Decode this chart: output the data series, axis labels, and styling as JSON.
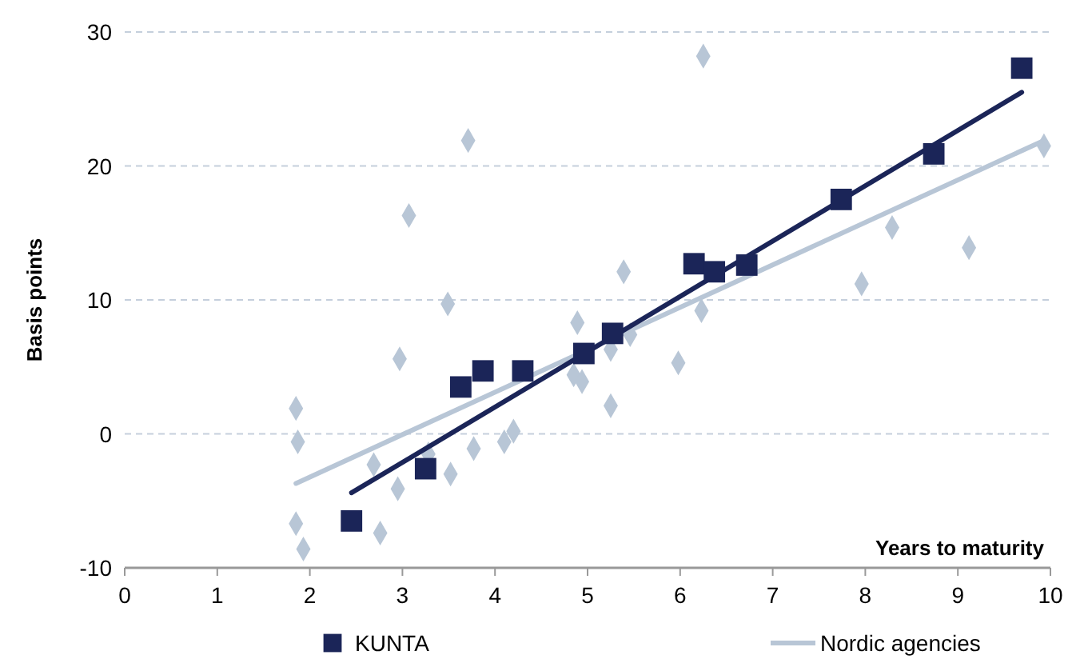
{
  "chart_data": {
    "type": "scatter",
    "xlabel": "Years to maturity",
    "ylabel": "Basis points",
    "xlim": [
      0,
      10
    ],
    "xticks": [
      0,
      1,
      2,
      3,
      4,
      5,
      6,
      7,
      8,
      9,
      10
    ],
    "ylim": [
      -10,
      30
    ],
    "yticks": [
      -10,
      0,
      10,
      20,
      30
    ],
    "grid": "y",
    "legend": "bottom",
    "series": [
      {
        "marker": "diamond",
        "color": "#b8c6d6",
        "x": [
          1.85,
          1.87,
          1.85,
          1.93,
          2.69,
          2.76,
          2.97,
          2.95,
          3.07,
          3.28,
          3.49,
          3.52,
          3.71,
          3.77,
          4.1,
          4.2,
          4.89,
          4.85,
          4.94,
          5.25,
          5.25,
          5.39,
          5.46,
          5.98,
          6.23,
          6.25,
          7.96,
          8.29,
          9.12,
          9.93
        ],
        "values": [
          1.9,
          -0.6,
          -6.7,
          -8.6,
          -2.3,
          -7.4,
          5.6,
          -4.1,
          16.3,
          -1.5,
          9.7,
          -3.0,
          21.9,
          -1.1,
          -0.6,
          0.2,
          8.3,
          4.4,
          3.9,
          6.3,
          2.1,
          12.1,
          7.4,
          5.3,
          9.2,
          28.2,
          11.2,
          15.4,
          13.9,
          21.5
        ]
      },
      {
        "type": "line",
        "name": "Nordic agencies",
        "color": "#b8c6d6",
        "x": [
          1.85,
          9.93
        ],
        "values": [
          -3.7,
          21.9
        ]
      },
      {
        "type": "line",
        "color": "#1b2558",
        "x": [
          2.45,
          9.69
        ],
        "values": [
          -4.4,
          25.5
        ]
      },
      {
        "name": "KUNTA",
        "marker": "square",
        "color": "#1b2558",
        "x": [
          2.45,
          3.25,
          3.63,
          3.87,
          4.3,
          4.96,
          5.27,
          6.15,
          6.37,
          6.72,
          7.74,
          8.74,
          9.69
        ],
        "values": [
          -6.5,
          -2.6,
          3.5,
          4.7,
          4.7,
          6.0,
          7.5,
          12.7,
          12.1,
          12.6,
          17.5,
          20.9,
          27.3
        ]
      }
    ]
  }
}
